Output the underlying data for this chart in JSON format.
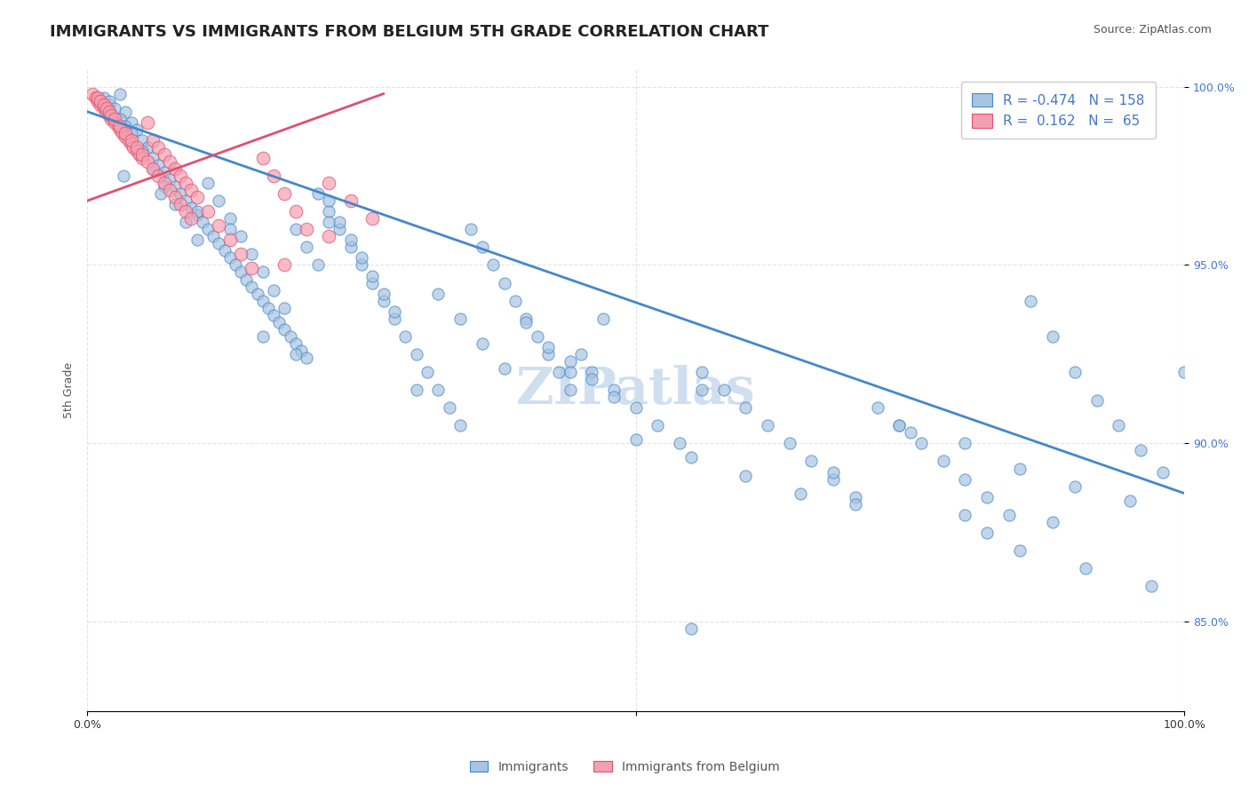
{
  "title": "IMMIGRANTS VS IMMIGRANTS FROM BELGIUM 5TH GRADE CORRELATION CHART",
  "source": "Source: ZipAtlas.com",
  "ylabel": "5th Grade",
  "xlabel": "",
  "legend_blue_label": "Immigrants",
  "legend_pink_label": "Immigrants from Belgium",
  "R_blue": -0.474,
  "N_blue": 158,
  "R_pink": 0.162,
  "N_pink": 65,
  "blue_color": "#a8c4e0",
  "pink_color": "#f4a0b0",
  "blue_line_color": "#4488cc",
  "pink_line_color": "#e05070",
  "watermark": "ZIPatlas",
  "xmin": 0.0,
  "xmax": 1.0,
  "ymin": 0.825,
  "ymax": 1.005,
  "ytick_positions": [
    0.85,
    0.9,
    0.95,
    1.0
  ],
  "ytick_labels": [
    "85.0%",
    "90.0%",
    "95.0%",
    "100.0%"
  ],
  "xtick_positions": [
    0.0,
    0.25,
    0.5,
    0.75,
    1.0
  ],
  "xtick_labels": [
    "0.0%",
    "",
    "",
    "",
    "100.0%"
  ],
  "blue_scatter_x": [
    0.02,
    0.03,
    0.035,
    0.04,
    0.045,
    0.05,
    0.055,
    0.06,
    0.065,
    0.07,
    0.075,
    0.08,
    0.085,
    0.09,
    0.095,
    0.1,
    0.105,
    0.11,
    0.115,
    0.12,
    0.125,
    0.13,
    0.135,
    0.14,
    0.145,
    0.15,
    0.155,
    0.16,
    0.165,
    0.17,
    0.175,
    0.18,
    0.185,
    0.19,
    0.195,
    0.2,
    0.21,
    0.22,
    0.23,
    0.24,
    0.25,
    0.26,
    0.27,
    0.28,
    0.29,
    0.3,
    0.31,
    0.32,
    0.33,
    0.34,
    0.35,
    0.36,
    0.37,
    0.38,
    0.39,
    0.4,
    0.41,
    0.42,
    0.43,
    0.44,
    0.45,
    0.46,
    0.47,
    0.48,
    0.5,
    0.52,
    0.54,
    0.56,
    0.58,
    0.6,
    0.62,
    0.64,
    0.66,
    0.68,
    0.7,
    0.72,
    0.74,
    0.76,
    0.78,
    0.8,
    0.82,
    0.84,
    0.86,
    0.88,
    0.9,
    0.92,
    0.94,
    0.96,
    0.98,
    1.0,
    0.015,
    0.02,
    0.025,
    0.03,
    0.035,
    0.04,
    0.05,
    0.06,
    0.07,
    0.08,
    0.09,
    0.1,
    0.11,
    0.12,
    0.13,
    0.14,
    0.15,
    0.16,
    0.17,
    0.18,
    0.19,
    0.2,
    0.21,
    0.22,
    0.23,
    0.24,
    0.25,
    0.26,
    0.27,
    0.28,
    0.3,
    0.32,
    0.34,
    0.36,
    0.38,
    0.4,
    0.42,
    0.44,
    0.46,
    0.48,
    0.5,
    0.55,
    0.6,
    0.65,
    0.7,
    0.75,
    0.8,
    0.85,
    0.9,
    0.95,
    0.033,
    0.067,
    0.1,
    0.13,
    0.16,
    0.19,
    0.22,
    0.44,
    0.56,
    0.68,
    0.74,
    0.8,
    0.85,
    0.91,
    0.97,
    0.55,
    0.82,
    0.88
  ],
  "blue_scatter_y": [
    0.995,
    0.998,
    0.993,
    0.99,
    0.988,
    0.985,
    0.983,
    0.98,
    0.978,
    0.976,
    0.974,
    0.972,
    0.97,
    0.968,
    0.966,
    0.964,
    0.962,
    0.96,
    0.958,
    0.956,
    0.954,
    0.952,
    0.95,
    0.948,
    0.946,
    0.944,
    0.942,
    0.94,
    0.938,
    0.936,
    0.934,
    0.932,
    0.93,
    0.928,
    0.926,
    0.924,
    0.97,
    0.965,
    0.96,
    0.955,
    0.95,
    0.945,
    0.94,
    0.935,
    0.93,
    0.925,
    0.92,
    0.915,
    0.91,
    0.905,
    0.96,
    0.955,
    0.95,
    0.945,
    0.94,
    0.935,
    0.93,
    0.925,
    0.92,
    0.915,
    0.925,
    0.92,
    0.935,
    0.915,
    0.91,
    0.905,
    0.9,
    0.92,
    0.915,
    0.91,
    0.905,
    0.9,
    0.895,
    0.89,
    0.885,
    0.91,
    0.905,
    0.9,
    0.895,
    0.89,
    0.885,
    0.88,
    0.94,
    0.93,
    0.92,
    0.912,
    0.905,
    0.898,
    0.892,
    0.92,
    0.997,
    0.996,
    0.994,
    0.991,
    0.989,
    0.987,
    0.982,
    0.977,
    0.972,
    0.967,
    0.962,
    0.957,
    0.973,
    0.968,
    0.963,
    0.958,
    0.953,
    0.948,
    0.943,
    0.938,
    0.96,
    0.955,
    0.95,
    0.968,
    0.962,
    0.957,
    0.952,
    0.947,
    0.942,
    0.937,
    0.915,
    0.942,
    0.935,
    0.928,
    0.921,
    0.934,
    0.927,
    0.923,
    0.918,
    0.913,
    0.901,
    0.896,
    0.891,
    0.886,
    0.883,
    0.903,
    0.9,
    0.893,
    0.888,
    0.884,
    0.975,
    0.97,
    0.965,
    0.96,
    0.93,
    0.925,
    0.962,
    0.92,
    0.915,
    0.892,
    0.905,
    0.88,
    0.87,
    0.865,
    0.86,
    0.848,
    0.875,
    0.878
  ],
  "pink_scatter_x": [
    0.005,
    0.008,
    0.01,
    0.012,
    0.015,
    0.018,
    0.02,
    0.022,
    0.025,
    0.028,
    0.03,
    0.032,
    0.035,
    0.038,
    0.04,
    0.042,
    0.045,
    0.048,
    0.05,
    0.055,
    0.06,
    0.065,
    0.07,
    0.075,
    0.08,
    0.085,
    0.09,
    0.095,
    0.1,
    0.11,
    0.12,
    0.13,
    0.14,
    0.15,
    0.16,
    0.17,
    0.18,
    0.19,
    0.2,
    0.22,
    0.24,
    0.26,
    0.01,
    0.012,
    0.015,
    0.018,
    0.02,
    0.022,
    0.025,
    0.03,
    0.035,
    0.04,
    0.045,
    0.05,
    0.055,
    0.06,
    0.065,
    0.07,
    0.075,
    0.08,
    0.085,
    0.09,
    0.095,
    0.18,
    0.22
  ],
  "pink_scatter_y": [
    0.998,
    0.997,
    0.996,
    0.995,
    0.994,
    0.993,
    0.992,
    0.991,
    0.99,
    0.989,
    0.988,
    0.987,
    0.986,
    0.985,
    0.984,
    0.983,
    0.982,
    0.981,
    0.98,
    0.99,
    0.985,
    0.983,
    0.981,
    0.979,
    0.977,
    0.975,
    0.973,
    0.971,
    0.969,
    0.965,
    0.961,
    0.957,
    0.953,
    0.949,
    0.98,
    0.975,
    0.97,
    0.965,
    0.96,
    0.973,
    0.968,
    0.963,
    0.997,
    0.996,
    0.995,
    0.994,
    0.993,
    0.992,
    0.991,
    0.989,
    0.987,
    0.985,
    0.983,
    0.981,
    0.979,
    0.977,
    0.975,
    0.973,
    0.971,
    0.969,
    0.967,
    0.965,
    0.963,
    0.95,
    0.958
  ],
  "blue_trendline_x": [
    0.0,
    1.0
  ],
  "blue_trendline_y": [
    0.993,
    0.886
  ],
  "pink_trendline_x": [
    0.0,
    0.27
  ],
  "pink_trendline_y": [
    0.968,
    0.998
  ],
  "title_fontsize": 13,
  "source_fontsize": 9,
  "axis_label_fontsize": 9,
  "legend_fontsize": 11,
  "tick_fontsize": 9,
  "watermark_fontsize": 42,
  "watermark_color": "#d0dff0",
  "background_color": "#ffffff",
  "grid_color": "#dddddd"
}
